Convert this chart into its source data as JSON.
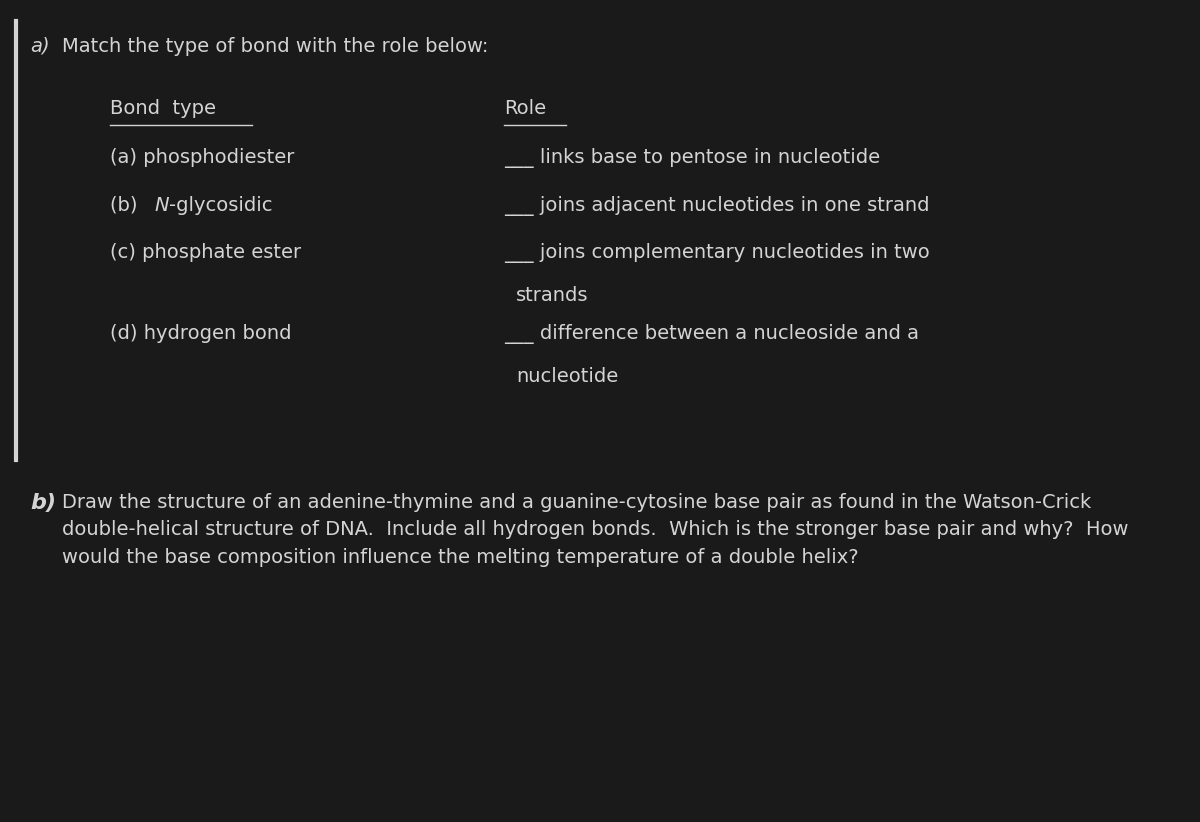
{
  "background_color": "#1a1a1a",
  "text_color": "#d4d4d4",
  "fig_width": 12.0,
  "fig_height": 8.22,
  "title_text_a": "Match the type of bond with the role below:",
  "bond_type_header": "Bond  type",
  "role_header": "Role",
  "part_b_text": "Draw the structure of an adenine-thymine and a guanine-cytosine base pair as found in the Watson-Crick\ndouble-helical structure of DNA.  Include all hydrogen bonds.  Which is the stronger base pair and why?  How\nwould the base composition influence the melting temperature of a double helix?",
  "font_size_main": 14,
  "blank": "___"
}
